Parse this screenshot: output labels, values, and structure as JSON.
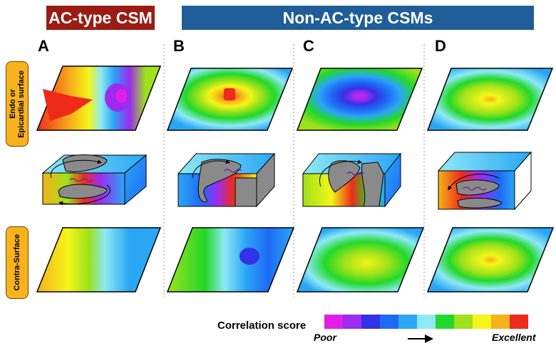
{
  "headers": {
    "ac": "AC-type CSM",
    "non_ac": "Non-AC-type CSMs"
  },
  "columns": [
    "A",
    "B",
    "C",
    "D"
  ],
  "row_labels": {
    "top": "Endo or\nEpicardial surface",
    "bottom": "Contra-Surface"
  },
  "legend": {
    "title": "Correlation score",
    "low": "Poor",
    "high": "Excellent",
    "colors": [
      "#e21ee6",
      "#9b2cf0",
      "#3232e6",
      "#1f6af5",
      "#2aa6f5",
      "#8ee9f5",
      "#22d82a",
      "#9de21a",
      "#f5f51a",
      "#f6b21a",
      "#ee2a1a"
    ]
  }
}
